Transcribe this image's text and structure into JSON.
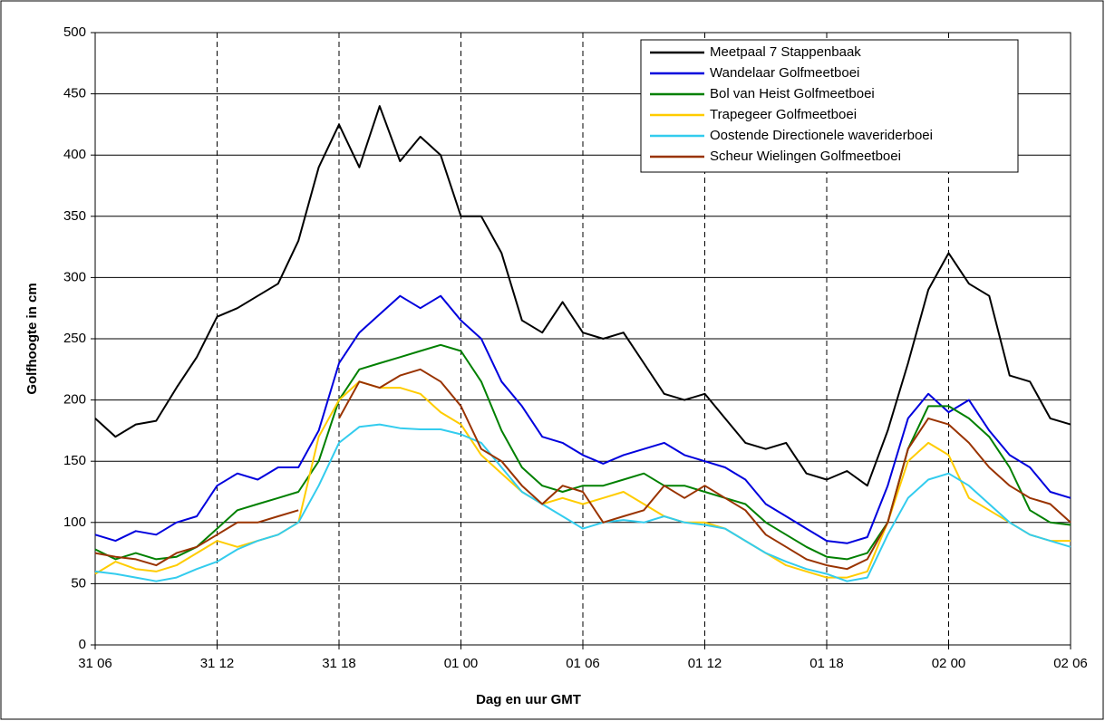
{
  "chart_data": {
    "type": "line",
    "x_label": "Dag en uur GMT",
    "y_label": "Golfhoogte in cm",
    "x": [
      0,
      1,
      2,
      3,
      4,
      5,
      6,
      7,
      8,
      9,
      10,
      11,
      12,
      13,
      14,
      15,
      16,
      17,
      18,
      19,
      20,
      21,
      22,
      23,
      24,
      25,
      26,
      27,
      28,
      29,
      30,
      31,
      32,
      33,
      34,
      35,
      36,
      37,
      38,
      39,
      40,
      41,
      42,
      43,
      44,
      45,
      46,
      47,
      48
    ],
    "xlim": [
      0,
      48
    ],
    "xticks": [
      {
        "value": 0,
        "label": "31 06"
      },
      {
        "value": 6,
        "label": "31 12"
      },
      {
        "value": 12,
        "label": "31 18"
      },
      {
        "value": 18,
        "label": "01 00"
      },
      {
        "value": 24,
        "label": "01 06"
      },
      {
        "value": 30,
        "label": "01 12"
      },
      {
        "value": 36,
        "label": "01 18"
      },
      {
        "value": 42,
        "label": "02 00"
      },
      {
        "value": 48,
        "label": "02 06"
      }
    ],
    "ylim": [
      0,
      500
    ],
    "yticks": [
      0,
      50,
      100,
      150,
      200,
      250,
      300,
      350,
      400,
      450,
      500
    ],
    "grid": true,
    "legend_position": "upper right",
    "series": [
      {
        "name": "Meetpaal 7 Stappenbaak",
        "color": "#000000",
        "values": [
          185,
          170,
          180,
          183,
          210,
          235,
          268,
          275,
          285,
          295,
          330,
          390,
          425,
          390,
          440,
          395,
          415,
          400,
          350,
          350,
          320,
          265,
          255,
          280,
          255,
          250,
          255,
          230,
          205,
          200,
          205,
          185,
          165,
          160,
          165,
          140,
          135,
          142,
          130,
          175,
          230,
          290,
          320,
          295,
          285,
          220,
          215,
          185,
          180
        ]
      },
      {
        "name": "Wandelaar Golfmeetboei",
        "color": "#0000dd",
        "values": [
          90,
          85,
          93,
          90,
          100,
          105,
          130,
          140,
          135,
          145,
          145,
          175,
          230,
          255,
          270,
          285,
          275,
          285,
          265,
          250,
          215,
          195,
          170,
          165,
          155,
          148,
          155,
          160,
          165,
          155,
          150,
          145,
          135,
          115,
          105,
          95,
          85,
          83,
          88,
          130,
          185,
          205,
          190,
          200,
          175,
          155,
          145,
          125,
          120
        ]
      },
      {
        "name": "Bol van Heist Golfmeetboei",
        "color": "#008000",
        "values": [
          78,
          70,
          75,
          70,
          72,
          80,
          95,
          110,
          115,
          120,
          125,
          150,
          200,
          225,
          230,
          235,
          240,
          245,
          240,
          215,
          175,
          145,
          130,
          125,
          130,
          130,
          135,
          140,
          130,
          130,
          125,
          120,
          115,
          100,
          90,
          80,
          72,
          70,
          75,
          100,
          160,
          195,
          195,
          185,
          170,
          145,
          110,
          100,
          98
        ]
      },
      {
        "name": "Trapegeer Golfmeetboei",
        "color": "#ffcc00",
        "values": [
          58,
          68,
          62,
          60,
          65,
          75,
          85,
          80,
          85,
          90,
          100,
          170,
          200,
          215,
          210,
          210,
          205,
          190,
          180,
          155,
          140,
          125,
          115,
          120,
          115,
          120,
          125,
          115,
          105,
          100,
          100,
          95,
          85,
          75,
          65,
          60,
          55,
          55,
          60,
          100,
          150,
          165,
          155,
          120,
          110,
          100,
          90,
          85,
          85
        ]
      },
      {
        "name": "Oostende Directionele waveriderboei",
        "color": "#33ccee",
        "values": [
          60,
          58,
          55,
          52,
          55,
          62,
          68,
          78,
          85,
          90,
          100,
          130,
          165,
          178,
          180,
          177,
          176,
          176,
          172,
          165,
          145,
          125,
          115,
          105,
          95,
          100,
          102,
          100,
          105,
          100,
          98,
          95,
          85,
          75,
          68,
          62,
          58,
          52,
          55,
          90,
          120,
          135,
          140,
          130,
          115,
          100,
          90,
          85,
          80
        ]
      },
      {
        "name": "Scheur Wielingen Golfmeetboei",
        "color": "#993300",
        "values": [
          75,
          72,
          70,
          65,
          75,
          80,
          90,
          100,
          100,
          105,
          110,
          null,
          185,
          215,
          210,
          220,
          225,
          215,
          195,
          160,
          150,
          130,
          115,
          130,
          125,
          100,
          105,
          110,
          130,
          120,
          130,
          120,
          110,
          90,
          80,
          70,
          65,
          62,
          70,
          100,
          160,
          185,
          180,
          165,
          145,
          130,
          120,
          115,
          100
        ]
      }
    ]
  }
}
